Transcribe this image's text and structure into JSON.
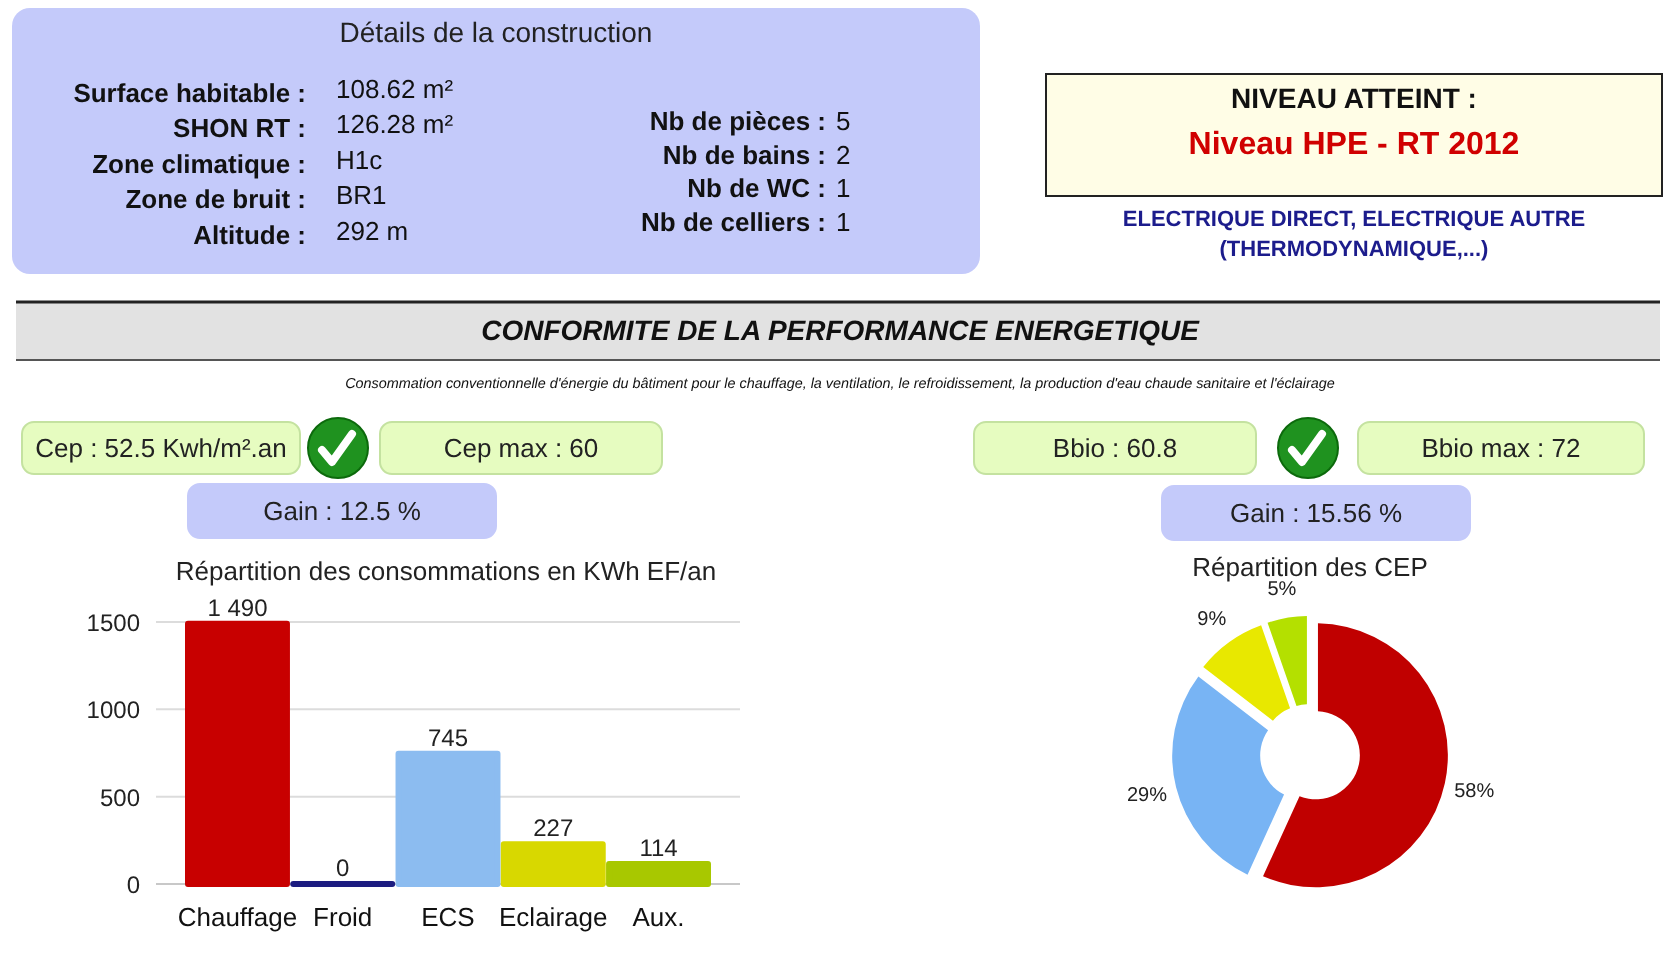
{
  "chart_data": [
    {
      "type": "other",
      "title": "Détails de la construction",
      "annotations": [
        "Surface habitable :",
        "108.62 m²",
        "SHON RT :",
        "126.28 m²",
        "Zone climatique :",
        "H1c",
        "Zone de bruit :",
        "BR1",
        "Altitude :",
        "292 m",
        "Nb de pièces :",
        "5",
        "Nb de bains :",
        "2",
        "Nb de WC :",
        "1",
        "Nb de celliers :",
        "1"
      ]
    },
    {
      "type": "other",
      "title": "NIVEAU ATTEINT :",
      "subtitle": "Niveau HPE - RT 2012",
      "annotations": [
        "ELECTRIQUE DIRECT, ELECTRIQUE AUTRE (THERMODYNAMIQUE,...)"
      ]
    },
    {
      "type": "other",
      "title": "CONFORMITE DE LA PERFORMANCE ENERGETIQUE",
      "subtitle": "Consommation conventionnelle d'énergie du bâtiment pour le chauffage, la ventilation, le refroidissement, la production d'eau chaude sanitaire et l'éclairage",
      "annotations": [
        "Cep : 52.5 Kwh/m².an",
        "Cep max : 60",
        "Gain : 12.5 %",
        "Bbio : 60.8",
        "Bbio max : 72",
        "Gain : 15.56 %"
      ]
    },
    {
      "type": "bar",
      "title": "Répartition des consommations en KWh EF/an",
      "categories": [
        "Chauffage",
        "Froid",
        "ECS",
        "Eclairage",
        "Aux."
      ],
      "values": [
        1490,
        0,
        745,
        227,
        114
      ],
      "value_labels": [
        "1 490",
        "0",
        "745",
        "227",
        "114"
      ],
      "colors": [
        "#c80000",
        "#1c1c80",
        "#8cbcf0",
        "#d8d800",
        "#a8c800"
      ],
      "ylim": [
        0,
        1500
      ],
      "yticks": [
        0,
        500,
        1000,
        1500
      ],
      "grid": "y"
    },
    {
      "type": "donut",
      "title": "Répartition des CEP",
      "categories": [
        null,
        null,
        null,
        null
      ],
      "values": [
        58,
        29,
        9,
        5
      ],
      "value_labels": [
        "58%",
        "29%",
        "9%",
        "5%"
      ],
      "colors": [
        "#c00000",
        "#78b4f4",
        "#e8e800",
        "#b4e000"
      ]
    }
  ]
}
